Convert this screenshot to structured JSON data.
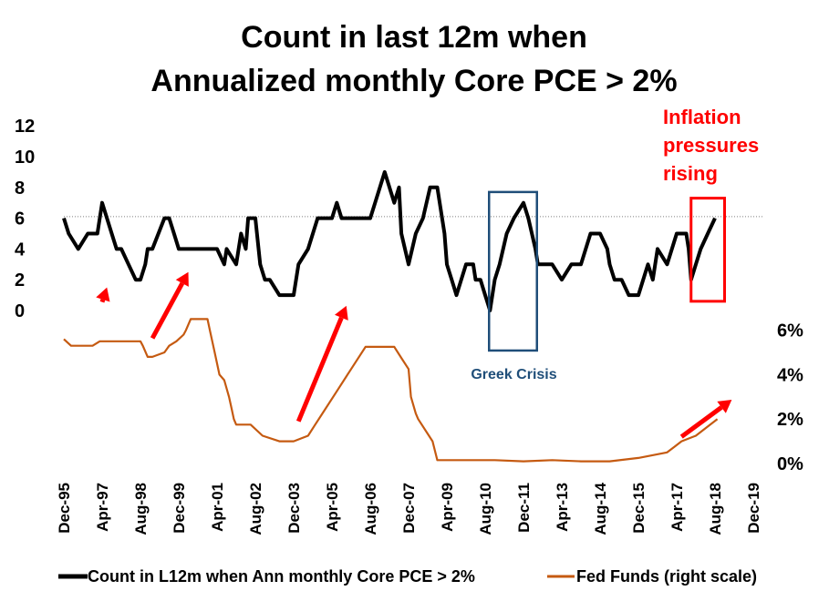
{
  "chart_data": {
    "type": "line",
    "title": [
      "Count in last 12m when",
      "Annualized monthly Core PCE > 2%"
    ],
    "colors": {
      "count": "#000000",
      "fedfunds": "#c55a11",
      "arrow": "#ff0000",
      "greek_box": "#1f4e79",
      "inflation_box": "#ff0000",
      "reference_line": "#7f7f7f"
    },
    "left_axis": {
      "ticks": [
        0,
        2,
        4,
        6,
        8,
        10,
        12
      ],
      "range": [
        0,
        12
      ]
    },
    "right_axis": {
      "ticks": [
        "0%",
        "2%",
        "4%",
        "6%"
      ],
      "range": [
        0,
        6
      ]
    },
    "x_axis": {
      "start": "Dec-95",
      "end": "Dec-19",
      "tick_labels": [
        "Dec-95",
        "Apr-97",
        "Aug-98",
        "Dec-99",
        "Apr-01",
        "Aug-02",
        "Dec-03",
        "Apr-05",
        "Aug-06",
        "Dec-07",
        "Apr-09",
        "Aug-10",
        "Dec-11",
        "Apr-13",
        "Aug-14",
        "Dec-15",
        "Apr-17",
        "Aug-18",
        "Dec-19"
      ]
    },
    "reference_line": {
      "y": 6.1
    },
    "series": [
      {
        "name": "Count in L12m when Ann monthly Core PCE > 2%",
        "axis": "left",
        "x": [
          "Dec-95",
          "Feb-96",
          "Jun-96",
          "Oct-96",
          "Feb-97",
          "Apr-97",
          "Aug-97",
          "Oct-97",
          "Dec-97",
          "Mar-98",
          "Jun-98",
          "Aug-98",
          "Oct-98",
          "Nov-98",
          "Jan-99",
          "Jun-99",
          "Aug-99",
          "Oct-99",
          "Dec-99",
          "Apr-00",
          "Oct-00",
          "Dec-00",
          "Apr-01",
          "Jul-01",
          "Aug-01",
          "Dec-01",
          "Feb-02",
          "Apr-02",
          "May-02",
          "Aug-02",
          "Oct-02",
          "Dec-02",
          "Feb-03",
          "Jun-03",
          "Dec-03",
          "Feb-04",
          "Jun-04",
          "Oct-04",
          "Apr-05",
          "Jun-05",
          "Aug-05",
          "Dec-05",
          "Apr-06",
          "Aug-06",
          "Oct-06",
          "Feb-07",
          "Jun-07",
          "Aug-07",
          "Sep-07",
          "Dec-07",
          "Mar-08",
          "Jun-08",
          "Sep-08",
          "Dec-08",
          "Mar-09",
          "Apr-09",
          "Jun-09",
          "Aug-09",
          "Dec-09",
          "Mar-10",
          "Apr-10",
          "Jun-10",
          "Aug-10",
          "Oct-10",
          "Dec-10",
          "Feb-11",
          "May-11",
          "Aug-11",
          "Dec-11",
          "Feb-12",
          "May-12",
          "Jun-12",
          "Aug-12",
          "Dec-12",
          "Apr-13",
          "Aug-13",
          "Dec-13",
          "Apr-14",
          "Aug-14",
          "Nov-14",
          "Dec-14",
          "Feb-15",
          "May-15",
          "Aug-15",
          "Dec-15",
          "Apr-16",
          "Jun-16",
          "Aug-16",
          "Dec-16",
          "Apr-17",
          "Aug-17",
          "Sep-17",
          "Oct-17",
          "Dec-17",
          "Feb-18",
          "May-18",
          "Aug-18"
        ],
        "y": [
          6,
          5,
          4,
          5,
          5,
          7,
          5,
          4,
          4,
          3,
          2,
          2,
          3,
          4,
          4,
          6,
          6,
          5,
          4,
          4,
          4,
          4,
          4,
          3,
          4,
          3,
          5,
          4,
          6,
          6,
          3,
          2,
          2,
          1,
          1,
          3,
          4,
          6,
          6,
          7,
          6,
          6,
          6,
          6,
          7,
          9,
          7,
          8,
          5,
          3,
          5,
          6,
          8,
          8,
          5,
          3,
          2,
          1,
          3,
          3,
          2,
          2,
          1,
          0,
          2,
          3,
          5,
          6,
          7,
          6,
          4,
          3,
          3,
          3,
          2,
          3,
          3,
          5,
          5,
          4,
          3,
          2,
          2,
          1,
          1,
          3,
          2,
          4,
          3,
          5,
          5,
          4,
          2,
          3,
          4,
          5,
          6
        ]
      },
      {
        "name": "Fed Funds (right scale)",
        "axis": "right",
        "x": [
          "Dec-95",
          "Mar-96",
          "Jun-96",
          "Sep-96",
          "Dec-96",
          "Mar-97",
          "Jun-97",
          "Sep-97",
          "Dec-97",
          "Mar-98",
          "Jun-98",
          "Aug-98",
          "Sep-98",
          "Nov-98",
          "Jan-99",
          "Jun-99",
          "Aug-99",
          "Nov-99",
          "Feb-00",
          "Mar-00",
          "May-00",
          "Dec-00",
          "Jan-01",
          "Mar-01",
          "May-01",
          "Jul-01",
          "Sep-01",
          "Oct-01",
          "Nov-01",
          "Dec-01",
          "Jun-02",
          "Nov-02",
          "Jun-03",
          "Dec-03",
          "Jun-04",
          "Sep-04",
          "Dec-04",
          "Jun-05",
          "Dec-05",
          "Jun-06",
          "Jun-07",
          "Sep-07",
          "Dec-07",
          "Jan-08",
          "Mar-08",
          "Apr-08",
          "Oct-08",
          "Dec-08",
          "Dec-09",
          "Dec-10",
          "Dec-11",
          "Dec-12",
          "Dec-13",
          "Dec-14",
          "Dec-15",
          "Dec-16",
          "Mar-17",
          "Jun-17",
          "Dec-17",
          "Mar-18",
          "Jun-18",
          "Sep-18"
        ],
        "y": [
          5.6,
          5.3,
          5.3,
          5.3,
          5.3,
          5.5,
          5.5,
          5.5,
          5.5,
          5.5,
          5.5,
          5.5,
          5.3,
          4.8,
          4.8,
          5.0,
          5.3,
          5.5,
          5.8,
          6.0,
          6.5,
          6.5,
          6.0,
          5.0,
          4.0,
          3.75,
          3.0,
          2.5,
          2.0,
          1.75,
          1.75,
          1.25,
          1.0,
          1.0,
          1.25,
          1.75,
          2.25,
          3.25,
          4.25,
          5.25,
          5.25,
          4.75,
          4.25,
          3.0,
          2.25,
          2.0,
          1.0,
          0.15,
          0.15,
          0.15,
          0.1,
          0.15,
          0.1,
          0.1,
          0.25,
          0.5,
          0.75,
          1.0,
          1.25,
          1.5,
          1.75,
          2.0
        ]
      }
    ],
    "annotations": {
      "greek_crisis": {
        "label": "Greek Crisis",
        "x_range": [
          "Oct-10",
          "Jun-12"
        ],
        "y_range": [
          -2.6,
          7.7
        ]
      },
      "inflation": {
        "label": [
          "Inflation",
          "pressures",
          "rising"
        ],
        "x_range": [
          "Oct-17",
          "Dec-18"
        ],
        "y_range": [
          0.6,
          7.3
        ]
      },
      "arrows": [
        {
          "from": [
            "Apr-97",
            0.55
          ],
          "to": [
            "Jun-97",
            1.5
          ]
        },
        {
          "from": [
            "Jan-99",
            -1.8
          ],
          "to": [
            "Apr-00",
            2.5
          ]
        },
        {
          "from": [
            "Feb-04",
            -7.2
          ],
          "to": [
            "Oct-05",
            0.3
          ]
        },
        {
          "from": [
            "Jun-17",
            -8.2
          ],
          "to": [
            "Mar-19",
            -5.8
          ]
        }
      ]
    },
    "legend": {
      "placement": "bottom"
    }
  }
}
